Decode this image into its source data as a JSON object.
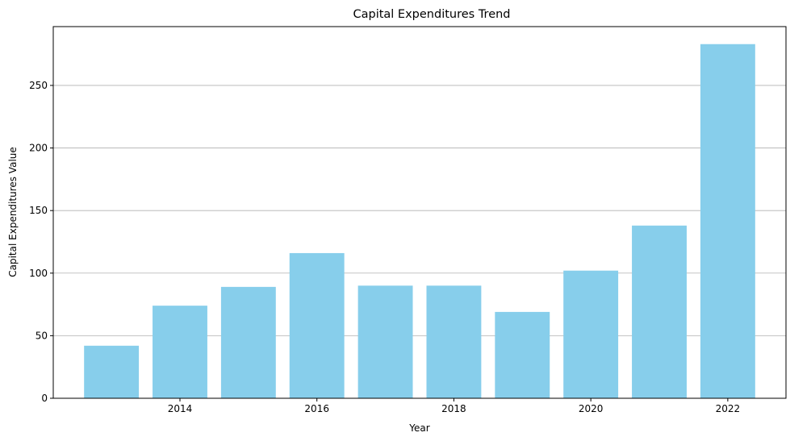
{
  "chart_data": {
    "type": "bar",
    "title": "Capital Expenditures Trend",
    "xlabel": "Year",
    "ylabel": "Capital Expenditures Value",
    "x": [
      2013,
      2014,
      2015,
      2016,
      2017,
      2018,
      2019,
      2020,
      2021,
      2022
    ],
    "values": [
      42,
      74,
      89,
      116,
      90,
      90,
      69,
      102,
      138,
      283
    ],
    "xticks": [
      "2014",
      "2016",
      "2018",
      "2020",
      "2022"
    ],
    "yticks": [
      "0",
      "50",
      "100",
      "150",
      "200",
      "250"
    ],
    "ylim": [
      0,
      297
    ],
    "xlim": [
      2012.15,
      2022.85
    ],
    "grid": "y",
    "colors": {
      "bar": "#87ceeb",
      "grid": "#b0b0b0",
      "axis": "#000000"
    }
  }
}
